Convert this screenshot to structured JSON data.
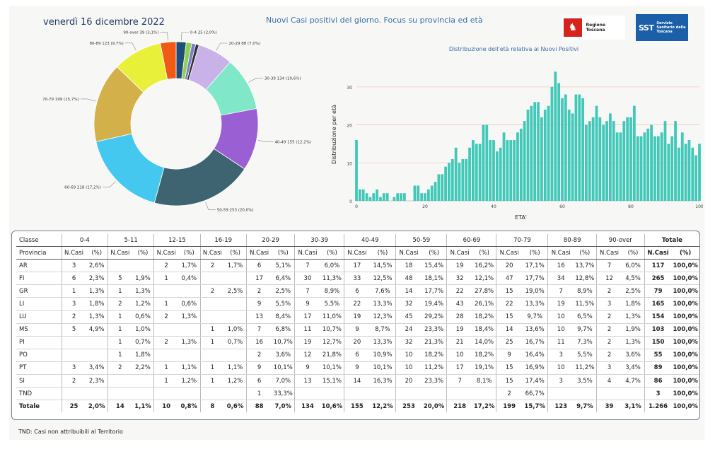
{
  "header": {
    "date": "venerdì 16 dicembre 2022",
    "title": "Nuovi Casi positivi del giorno. Focus su provincia ed età",
    "logo_regione": "Regione Toscana",
    "logo_sst_mark": "SST",
    "logo_sst_text": "Servizio Sanitario della Toscana"
  },
  "chart_data": [
    {
      "type": "pie",
      "donut": true,
      "categories": [
        "0-4",
        "5-11",
        "12-15",
        "16-19",
        "20-29",
        "30-39",
        "40-49",
        "50-59",
        "60-69",
        "70-79",
        "80-89",
        "90-over"
      ],
      "values": [
        25,
        14,
        10,
        8,
        88,
        134,
        155,
        253,
        218,
        199,
        123,
        39
      ],
      "labels": [
        "0-4 25 (2,0%)",
        "",
        "",
        "",
        "20-29 88 (7,0%)",
        "30-39 134 (10,6%)",
        "40-49 155 (12,2%)",
        "50-59 253 (20,0%)",
        "60-69 218 (17,2%)",
        "70-79 199 (15,7%)",
        "80-89 123 (9,7%)",
        "90-over 39 (3,1%)"
      ],
      "colors": [
        "#1f4e79",
        "#8fd14f",
        "#7b7bd0",
        "#2f2f2f",
        "#c9b2e8",
        "#80e8c8",
        "#9b5fd4",
        "#3d6470",
        "#45c8f0",
        "#d4b04a",
        "#e8f03a",
        "#f05a14"
      ]
    },
    {
      "type": "bar",
      "title": "Distribuzione dell'età relativa ai Nuovi Positivi",
      "xlabel": "ETA'",
      "ylabel": "Distribuzione per età",
      "xlim": [
        0,
        100
      ],
      "ylim": [
        0,
        35
      ],
      "xticks": [
        0,
        20,
        40,
        60,
        80,
        100
      ],
      "yticks": [
        0,
        10,
        20,
        30
      ],
      "grid": true,
      "x": [
        0,
        1,
        2,
        3,
        4,
        5,
        6,
        7,
        8,
        9,
        10,
        11,
        12,
        13,
        14,
        15,
        16,
        17,
        18,
        19,
        20,
        21,
        22,
        23,
        24,
        25,
        26,
        27,
        28,
        29,
        30,
        31,
        32,
        33,
        34,
        35,
        36,
        37,
        38,
        39,
        40,
        41,
        42,
        43,
        44,
        45,
        46,
        47,
        48,
        49,
        50,
        51,
        52,
        53,
        54,
        55,
        56,
        57,
        58,
        59,
        60,
        61,
        62,
        63,
        64,
        65,
        66,
        67,
        68,
        69,
        70,
        71,
        72,
        73,
        74,
        75,
        76,
        77,
        78,
        79,
        80,
        81,
        82,
        83,
        84,
        85,
        86,
        87,
        88,
        89,
        90,
        91,
        92,
        93,
        94,
        95,
        96,
        97,
        98,
        99,
        100
      ],
      "values": [
        16,
        3,
        3,
        2,
        1,
        2,
        3,
        1,
        2,
        2,
        0,
        1,
        2,
        2,
        2,
        0,
        0,
        4,
        4,
        2,
        2,
        3,
        4,
        5,
        7,
        7,
        9,
        10,
        11,
        14,
        10,
        11,
        11,
        14,
        16,
        15,
        15,
        20,
        20,
        16,
        16,
        13,
        14,
        18,
        16,
        16,
        16,
        18,
        19,
        21,
        24,
        25,
        26,
        26,
        22,
        24,
        25,
        30,
        34,
        31,
        27,
        28,
        24,
        23,
        28,
        28,
        27,
        20,
        21,
        22,
        25,
        22,
        20,
        21,
        23,
        21,
        18,
        18,
        21,
        22,
        22,
        25,
        17,
        17,
        18,
        19,
        20,
        17,
        17,
        18,
        21,
        15,
        17,
        21,
        14,
        18,
        15,
        16,
        14,
        12,
        15
      ]
    }
  ],
  "table": {
    "headers": [
      "Classe",
      "0-4",
      "5-11",
      "12-15",
      "16-19",
      "20-29",
      "30-39",
      "40-49",
      "50-59",
      "60-69",
      "70-79",
      "80-89",
      "90-over",
      "Totale"
    ],
    "subheader_first": "Provincia",
    "subheader_n": "N.Casi",
    "subheader_pct": "(%)",
    "rows": [
      [
        "AR",
        "3",
        "2,6%",
        "",
        "",
        "2",
        "1,7%",
        "2",
        "1,7%",
        "6",
        "5,1%",
        "7",
        "6,0%",
        "17",
        "14,5%",
        "18",
        "15,4%",
        "19",
        "16,2%",
        "20",
        "17,1%",
        "16",
        "13,7%",
        "7",
        "6,0%",
        "117",
        "100,0%"
      ],
      [
        "FI",
        "6",
        "2,3%",
        "5",
        "1,9%",
        "1",
        "0,4%",
        "",
        "",
        "17",
        "6,4%",
        "30",
        "11,3%",
        "33",
        "12,5%",
        "48",
        "18,1%",
        "32",
        "12,1%",
        "47",
        "17,7%",
        "34",
        "12,8%",
        "12",
        "4,5%",
        "265",
        "100,0%"
      ],
      [
        "GR",
        "1",
        "1,3%",
        "1",
        "1,3%",
        "",
        "",
        "2",
        "2,5%",
        "2",
        "2,5%",
        "7",
        "8,9%",
        "6",
        "7,6%",
        "14",
        "17,7%",
        "22",
        "27,8%",
        "15",
        "19,0%",
        "7",
        "8,9%",
        "2",
        "2,5%",
        "79",
        "100,0%"
      ],
      [
        "LI",
        "3",
        "1,8%",
        "2",
        "1,2%",
        "1",
        "0,6%",
        "",
        "",
        "9",
        "5,5%",
        "9",
        "5,5%",
        "22",
        "13,3%",
        "32",
        "19,4%",
        "43",
        "26,1%",
        "22",
        "13,3%",
        "19",
        "11,5%",
        "3",
        "1,8%",
        "165",
        "100,0%"
      ],
      [
        "LU",
        "2",
        "1,3%",
        "1",
        "0,6%",
        "2",
        "1,3%",
        "",
        "",
        "13",
        "8,4%",
        "17",
        "11,0%",
        "19",
        "12,3%",
        "45",
        "29,2%",
        "28",
        "18,2%",
        "15",
        "9,7%",
        "10",
        "6,5%",
        "2",
        "1,3%",
        "154",
        "100,0%"
      ],
      [
        "MS",
        "5",
        "4,9%",
        "1",
        "1,0%",
        "",
        "",
        "1",
        "1,0%",
        "7",
        "6,8%",
        "11",
        "10,7%",
        "9",
        "8,7%",
        "24",
        "23,3%",
        "19",
        "18,4%",
        "14",
        "13,6%",
        "10",
        "9,7%",
        "2",
        "1,9%",
        "103",
        "100,0%"
      ],
      [
        "PI",
        "",
        "",
        "1",
        "0,7%",
        "2",
        "1,3%",
        "1",
        "0,7%",
        "16",
        "10,7%",
        "19",
        "12,7%",
        "20",
        "13,3%",
        "32",
        "21,3%",
        "21",
        "14,0%",
        "25",
        "16,7%",
        "11",
        "7,3%",
        "2",
        "1,3%",
        "150",
        "100,0%"
      ],
      [
        "PO",
        "",
        "",
        "1",
        "1,8%",
        "",
        "",
        "",
        "",
        "2",
        "3,6%",
        "12",
        "21,8%",
        "6",
        "10,9%",
        "10",
        "18,2%",
        "10",
        "18,2%",
        "9",
        "16,4%",
        "3",
        "5,5%",
        "2",
        "3,6%",
        "55",
        "100,0%"
      ],
      [
        "PT",
        "3",
        "3,4%",
        "2",
        "2,2%",
        "1",
        "1,1%",
        "1",
        "1,1%",
        "9",
        "10,1%",
        "9",
        "10,1%",
        "9",
        "10,1%",
        "10",
        "11,2%",
        "17",
        "19,1%",
        "15",
        "16,9%",
        "10",
        "11,2%",
        "3",
        "3,4%",
        "89",
        "100,0%"
      ],
      [
        "SI",
        "2",
        "2,3%",
        "",
        "",
        "1",
        "1,2%",
        "1",
        "1,2%",
        "6",
        "7,0%",
        "13",
        "15,1%",
        "14",
        "16,3%",
        "20",
        "23,3%",
        "7",
        "8,1%",
        "15",
        "17,4%",
        "3",
        "3,5%",
        "4",
        "4,7%",
        "86",
        "100,0%"
      ],
      [
        "TND",
        "",
        "",
        "",
        "",
        "",
        "",
        "",
        "",
        "1",
        "33,3%",
        "",
        "",
        "",
        "",
        "",
        "",
        "",
        "",
        "2",
        "66,7%",
        "",
        "",
        "",
        "",
        "3",
        "100,0%"
      ]
    ],
    "total": [
      "Totale",
      "25",
      "2,0%",
      "14",
      "1,1%",
      "10",
      "0,8%",
      "8",
      "0,6%",
      "88",
      "7,0%",
      "134",
      "10,6%",
      "155",
      "12,2%",
      "253",
      "20,0%",
      "218",
      "17,2%",
      "199",
      "15,7%",
      "123",
      "9,7%",
      "39",
      "3,1%",
      "1.266",
      "100,0%"
    ]
  },
  "footnote": "TND:  Casi non attribuibili al Territorio"
}
